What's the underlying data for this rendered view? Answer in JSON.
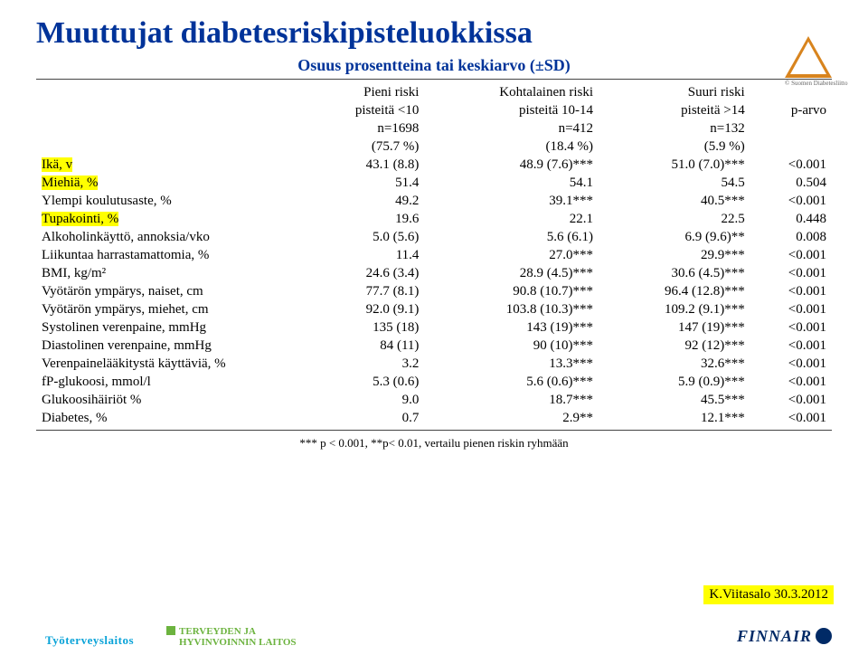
{
  "title": "Muuttujat diabetesriskipisteluokkissa",
  "subtitle": "Osuus prosentteina tai keskiarvo (±SD)",
  "columns": {
    "c1": {
      "h1": "Pieni riski",
      "h2": "pisteitä <10",
      "h3": "n=1698",
      "h4": "(75.7 %)"
    },
    "c2": {
      "h1": "Kohtalainen riski",
      "h2": "pisteitä 10-14",
      "h3": "n=412",
      "h4": "(18.4 %)"
    },
    "c3": {
      "h1": "Suuri riski",
      "h2": "pisteitä >14",
      "h3": "n=132",
      "h4": "(5.9 %)"
    },
    "c4": {
      "h1": "p-arvo"
    }
  },
  "rows": [
    {
      "label": "Ikä, v",
      "hl": true,
      "v1": "43.1 (8.8)",
      "v2": "48.9 (7.6)***",
      "v3": "51.0 (7.0)***",
      "v4": "<0.001"
    },
    {
      "label": "Miehiä, %",
      "hl": true,
      "v1": "51.4",
      "v2": "54.1",
      "v3": "54.5",
      "v4": "0.504"
    },
    {
      "label": "Ylempi koulutusaste, %",
      "hl": false,
      "v1": "49.2",
      "v2": "39.1***",
      "v3": "40.5***",
      "v4": "<0.001"
    },
    {
      "label": "Tupakointi, %",
      "hl": true,
      "v1": "19.6",
      "v2": "22.1",
      "v3": "22.5",
      "v4": "0.448"
    },
    {
      "label": "Alkoholinkäyttö, annoksia/vko",
      "hl": false,
      "v1": "5.0 (5.6)",
      "v2": "5.6 (6.1)",
      "v3": "6.9 (9.6)**",
      "v4": "0.008"
    },
    {
      "label": "Liikuntaa  harrastamattomia, %",
      "hl": false,
      "v1": "11.4",
      "v2": "27.0***",
      "v3": "29.9***",
      "v4": "<0.001"
    },
    {
      "label": "BMI, kg/m²",
      "hl": false,
      "v1": "24.6 (3.4)",
      "v2": "28.9 (4.5)***",
      "v3": "30.6 (4.5)***",
      "v4": "<0.001"
    },
    {
      "label": "Vyötärön ympärys, naiset, cm",
      "hl": false,
      "v1": "77.7 (8.1)",
      "v2": "90.8 (10.7)***",
      "v3": "96.4 (12.8)***",
      "v4": "<0.001"
    },
    {
      "label": "Vyötärön ympärys, miehet, cm",
      "hl": false,
      "v1": "92.0 (9.1)",
      "v2": "103.8 (10.3)***",
      "v3": "109.2 (9.1)***",
      "v4": "<0.001"
    },
    {
      "label": "Systolinen verenpaine, mmHg",
      "hl": false,
      "v1": "135 (18)",
      "v2": "143 (19)***",
      "v3": "147 (19)***",
      "v4": "<0.001"
    },
    {
      "label": "Diastolinen verenpaine, mmHg",
      "hl": false,
      "v1": "84 (11)",
      "v2": "90 (10)***",
      "v3": "92 (12)***",
      "v4": "<0.001"
    },
    {
      "label": "Verenpainelääkitystä käyttäviä, %",
      "hl": false,
      "v1": "3.2",
      "v2": "13.3***",
      "v3": "32.6***",
      "v4": "<0.001"
    },
    {
      "label": "fP-glukoosi, mmol/l",
      "hl": false,
      "v1": "5.3 (0.6)",
      "v2": "5.6 (0.6)***",
      "v3": "5.9 (0.9)***",
      "v4": "<0.001"
    },
    {
      "label": "Glukoosihäiriöt %",
      "hl": false,
      "v1": "9.0",
      "v2": "18.7***",
      "v3": "45.5***",
      "v4": "<0.001"
    },
    {
      "label": "Diabetes, %",
      "hl": false,
      "v1": "0.7",
      "v2": "2.9**",
      "v3": "12.1***",
      "v4": "<0.001"
    }
  ],
  "footnote": "*** p < 0.001, **p< 0.01, vertailu pienen riskin ryhmään",
  "date": "K.Viitasalo 30.3.2012",
  "logos": {
    "ttl": "Työterveyslaitos",
    "thl1": "TERVEYDEN JA",
    "thl2": "HYVINVOINNIN LAITOS",
    "finnair": "FINNAIR",
    "warn": "© Suomen Diabetesliitto"
  },
  "colors": {
    "title": "#003399",
    "highlight": "#ffff00"
  }
}
